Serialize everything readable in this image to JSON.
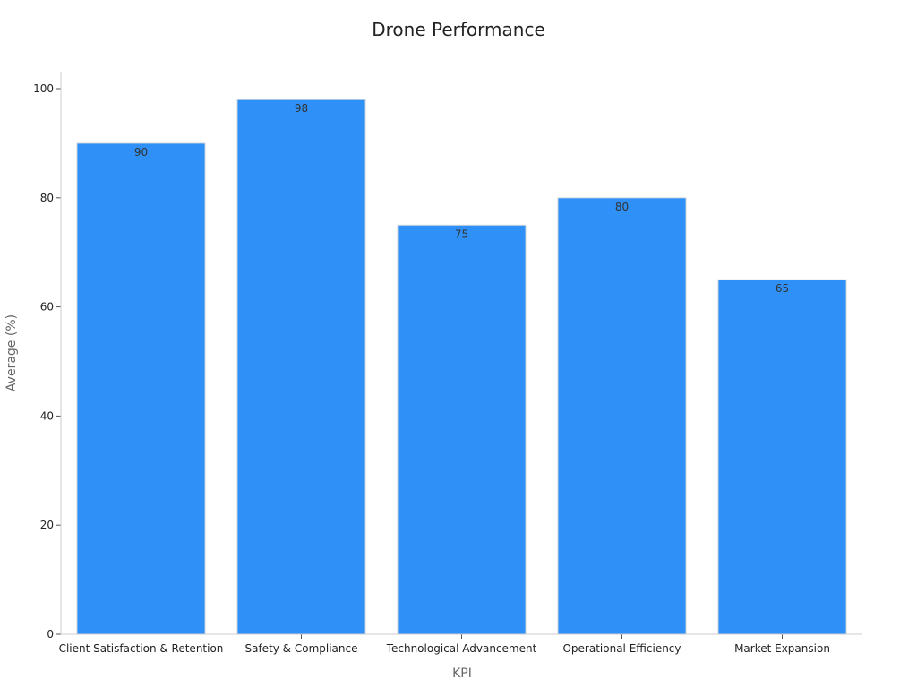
{
  "chart_data": {
    "type": "bar",
    "title": "Drone Performance",
    "xlabel": "KPI",
    "ylabel": "Average (%)",
    "categories": [
      "Client Satisfaction & Retention",
      "Safety & Compliance",
      "Technological Advancement",
      "Operational Efficiency",
      "Market Expansion"
    ],
    "values": [
      90,
      98,
      75,
      80,
      65
    ],
    "ylim": [
      0,
      103
    ],
    "yticks": [
      0,
      20,
      40,
      60,
      80,
      100
    ],
    "bar_color": "#2f91f7",
    "grid": false,
    "legend": "none",
    "data_labels": true
  }
}
